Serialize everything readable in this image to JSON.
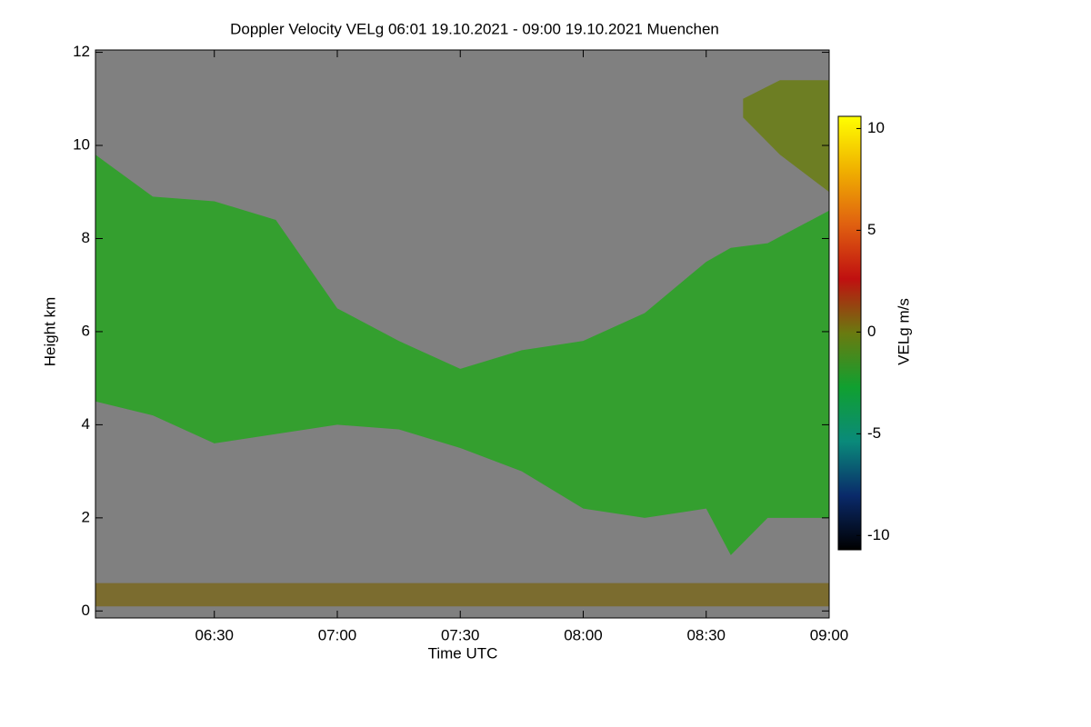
{
  "chart_data": {
    "type": "time-height",
    "title": "Doppler Velocity VELg   06:01 19.10.2021 - 09:00 19.10.2021 Muenchen",
    "x_label": "Time UTC",
    "y_label": "Height km",
    "xlim": [
      6.0167,
      9.0
    ],
    "xticks": [
      {
        "value": 6.5,
        "label": "06:30"
      },
      {
        "value": 7.0,
        "label": "07:00"
      },
      {
        "value": 7.5,
        "label": "07:30"
      },
      {
        "value": 8.0,
        "label": "08:00"
      },
      {
        "value": 8.5,
        "label": "08:30"
      },
      {
        "value": 9.0,
        "label": "09:00"
      }
    ],
    "ylim": [
      -0.15,
      12.05
    ],
    "yticks": [
      0,
      2,
      4,
      6,
      8,
      10,
      12
    ],
    "background": "#808080",
    "layers": [
      {
        "color": "#2fa02a",
        "x": [
          6.0167,
          6.25,
          6.5,
          6.75,
          7.0,
          7.25,
          7.5,
          7.75,
          8.0,
          8.25,
          8.5,
          8.6,
          8.75,
          9.0
        ],
        "top": [
          9.8,
          8.9,
          8.8,
          8.4,
          6.5,
          5.8,
          5.2,
          5.6,
          5.8,
          6.4,
          7.5,
          7.8,
          7.9,
          8.6
        ],
        "base": [
          4.5,
          4.2,
          3.6,
          3.8,
          4.0,
          3.9,
          3.5,
          3.0,
          2.2,
          2.0,
          2.2,
          1.2,
          2.0,
          2.0
        ]
      },
      {
        "color": "#6b7d1e",
        "x": [
          8.65,
          8.8,
          9.0
        ],
        "top": [
          11.0,
          11.4,
          11.4
        ],
        "base": [
          10.6,
          9.8,
          9.0
        ]
      },
      {
        "color": "#7a6a2a",
        "x": [
          6.0167,
          9.0
        ],
        "top": [
          0.6,
          0.6
        ],
        "base": [
          0.1,
          0.1
        ]
      }
    ],
    "colorbar": {
      "label": "VELg m/s",
      "lim": [
        -10.7,
        10.6
      ],
      "ticks": [
        -10,
        -5,
        0,
        5,
        10
      ],
      "colors": [
        "#000000",
        "#0a2a6a",
        "#0a8a7a",
        "#10a030",
        "#6a7a10",
        "#c01010",
        "#e06010",
        "#f0b000",
        "#ffff00"
      ]
    }
  }
}
